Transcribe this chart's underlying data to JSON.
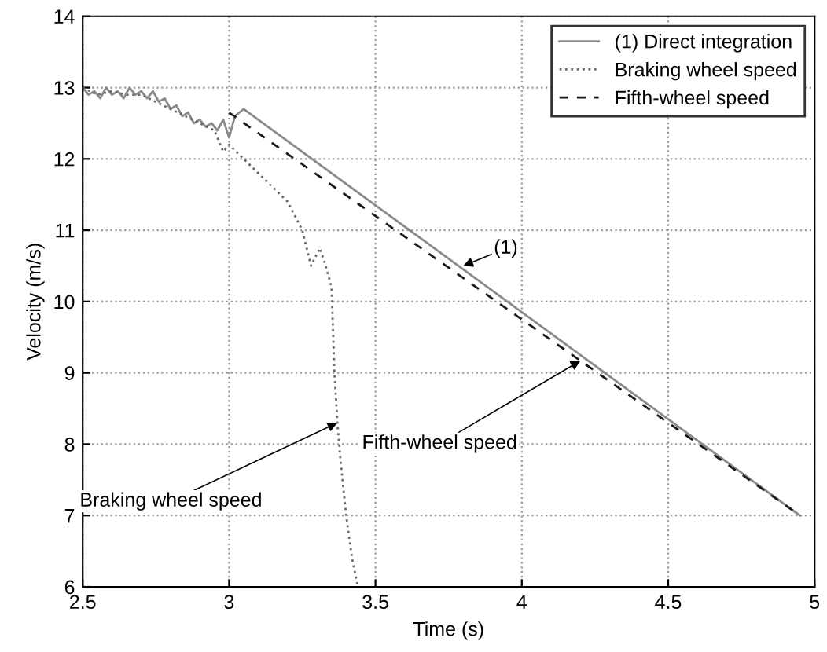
{
  "chart_data": {
    "type": "line",
    "xlabel": "Time (s)",
    "ylabel": "Velocity (m/s)",
    "xlim": [
      2.5,
      5
    ],
    "ylim": [
      6,
      14
    ],
    "xticks": [
      2.5,
      3,
      3.5,
      4,
      4.5,
      5
    ],
    "yticks": [
      6,
      7,
      8,
      9,
      10,
      11,
      12,
      13,
      14
    ],
    "grid": true,
    "legend": "top right",
    "series": [
      {
        "name": "(1) Direct integration",
        "color": "#8a8a8a",
        "line_style": "solid",
        "x": [
          2.5,
          2.52,
          2.54,
          2.56,
          2.58,
          2.6,
          2.62,
          2.64,
          2.66,
          2.68,
          2.7,
          2.72,
          2.74,
          2.76,
          2.78,
          2.8,
          2.82,
          2.84,
          2.86,
          2.88,
          2.9,
          2.92,
          2.94,
          2.96,
          2.98,
          3.0,
          3.02,
          3.05,
          3.5,
          4.0,
          4.5,
          4.95
        ],
        "values": [
          13.0,
          12.9,
          12.95,
          12.85,
          13.0,
          12.9,
          12.95,
          12.85,
          13.0,
          12.9,
          12.95,
          12.85,
          12.95,
          12.8,
          12.85,
          12.7,
          12.75,
          12.6,
          12.65,
          12.5,
          12.55,
          12.45,
          12.5,
          12.4,
          12.55,
          12.3,
          12.6,
          12.7,
          11.35,
          9.85,
          8.35,
          7.0
        ]
      },
      {
        "name": "Braking wheel speed",
        "color": "#6a6a6a",
        "line_style": "dotted",
        "x": [
          2.5,
          2.55,
          2.6,
          2.65,
          2.7,
          2.75,
          2.8,
          2.85,
          2.9,
          2.95,
          2.98,
          3.0,
          3.05,
          3.1,
          3.15,
          3.2,
          3.25,
          3.28,
          3.31,
          3.33,
          3.35,
          3.36,
          3.37,
          3.38,
          3.4,
          3.42,
          3.44
        ],
        "values": [
          13.0,
          12.9,
          12.95,
          12.9,
          12.9,
          12.8,
          12.7,
          12.6,
          12.5,
          12.4,
          12.1,
          12.2,
          12.0,
          11.8,
          11.6,
          11.4,
          11.0,
          10.5,
          10.75,
          10.5,
          10.2,
          9.0,
          8.3,
          7.8,
          7.0,
          6.4,
          6.0
        ]
      },
      {
        "name": "Fifth-wheel speed",
        "color": "#1a1a1a",
        "line_style": "dashed",
        "x": [
          3.0,
          3.5,
          4.0,
          4.5,
          4.95
        ],
        "values": [
          12.65,
          11.2,
          9.75,
          8.3,
          7.0
        ]
      }
    ],
    "annotations": [
      {
        "text": "(1)",
        "x": 3.8,
        "y": 10.5
      },
      {
        "text": "Fifth-wheel speed",
        "x": 4.2,
        "y": 9.17
      },
      {
        "text": "Braking wheel speed",
        "x": 3.37,
        "y": 8.3
      }
    ]
  }
}
